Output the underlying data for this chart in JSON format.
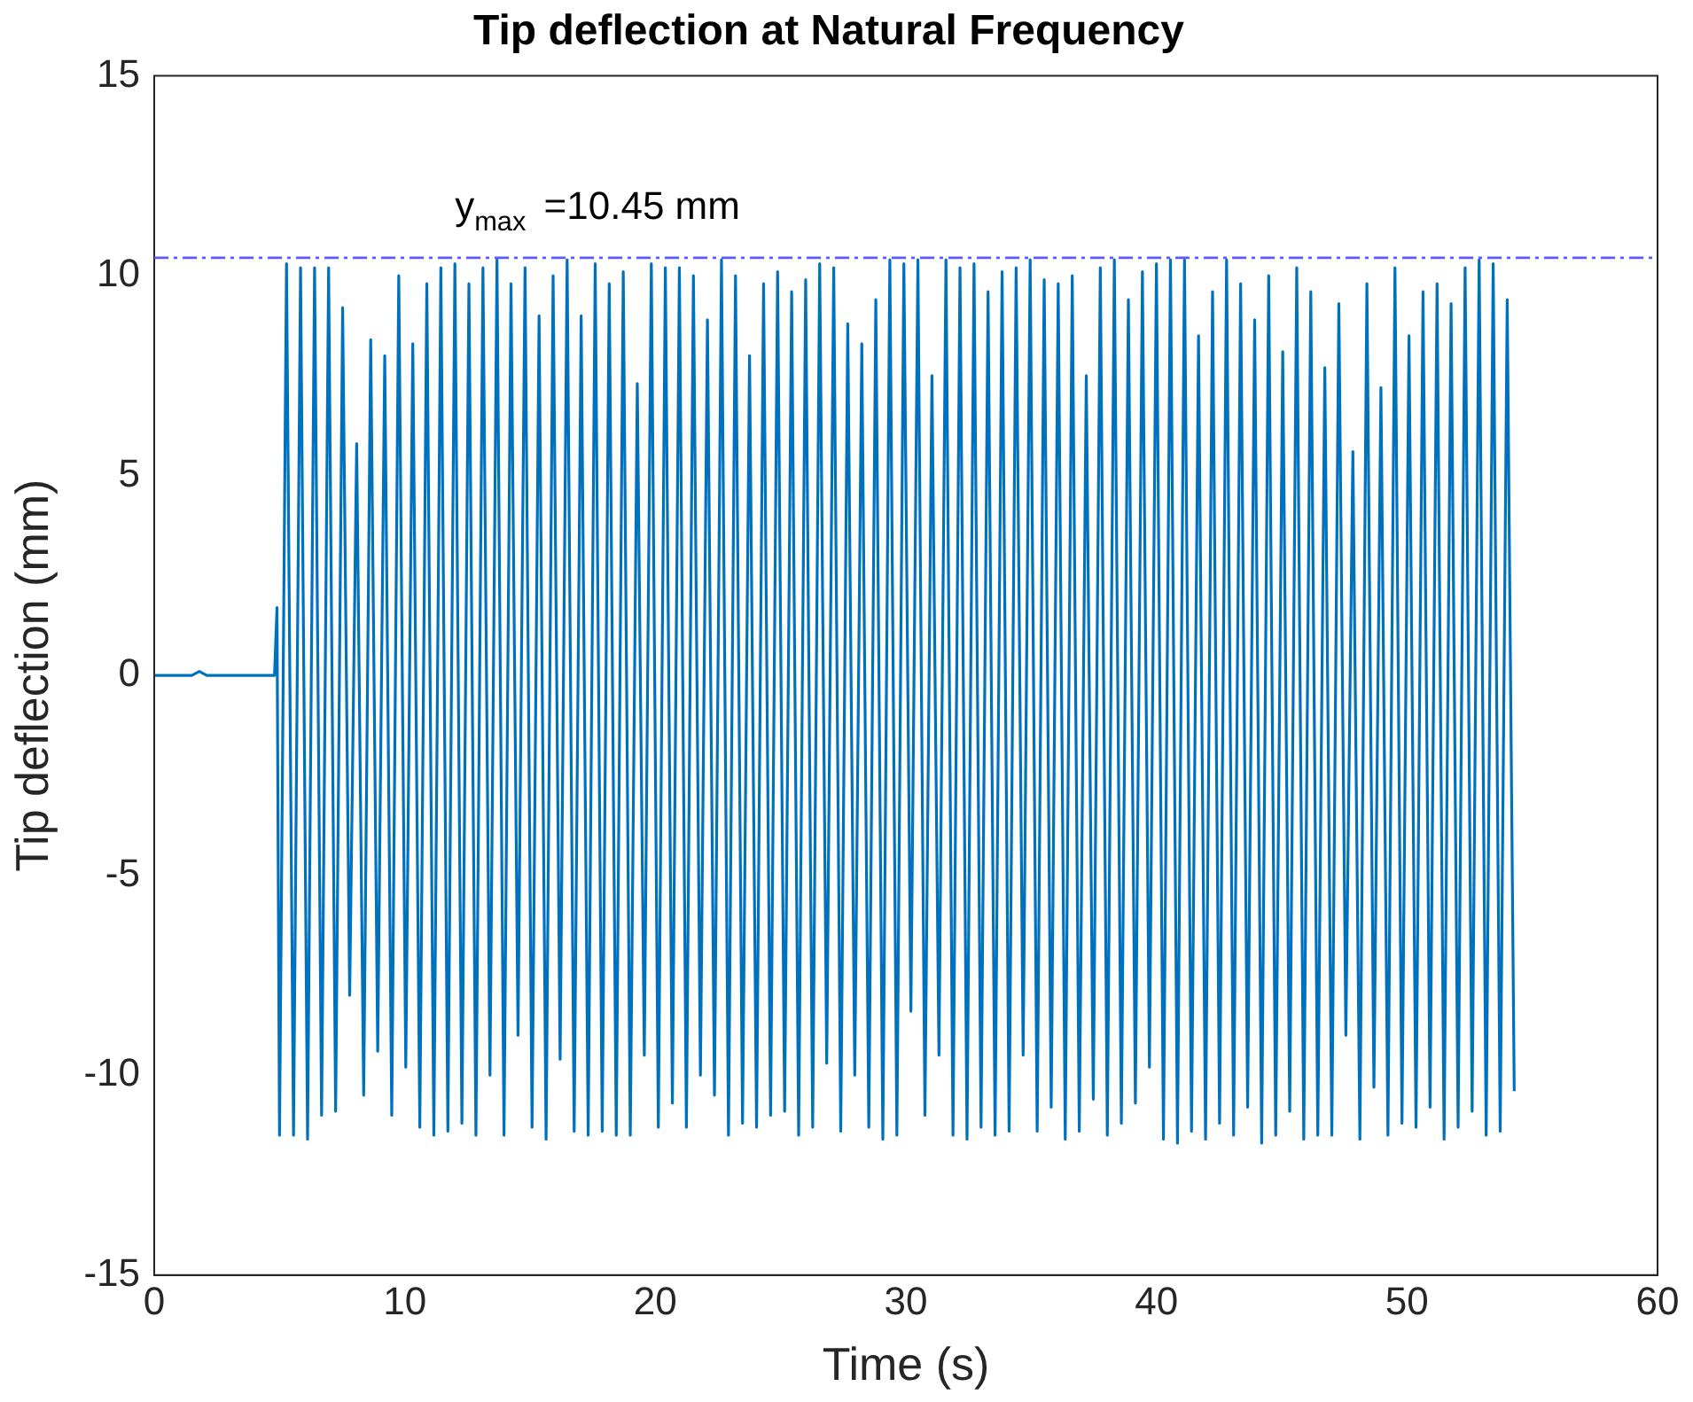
{
  "chart_data": {
    "type": "line",
    "title": "Tip deflection at Natural Frequency",
    "xlabel": "Time (s)",
    "ylabel": "Tip deflection (mm)",
    "xlim": [
      0,
      60
    ],
    "ylim": [
      -15,
      15
    ],
    "xticks": [
      0,
      10,
      20,
      30,
      40,
      50,
      60
    ],
    "yticks": [
      -15,
      -10,
      -5,
      0,
      5,
      10,
      15
    ],
    "grid": false,
    "legend": false,
    "marker": "none",
    "line_style": "solid",
    "ref_lines": [
      {
        "axis": "y",
        "value": 10.45,
        "label": "y$_{max}$ =10.45 mm",
        "color": "#5a5aff",
        "line_style": "dashed"
      }
    ],
    "series": [
      {
        "color": "#0072bd",
        "x": [
          0,
          1.5,
          1.8,
          2.1,
          4.8,
          4.9,
          5.0,
          5.28,
          5.56,
          5.84,
          6.12,
          6.4,
          6.68,
          6.96,
          7.24,
          7.52,
          7.8,
          8.08,
          8.36,
          8.64,
          8.92,
          9.2,
          9.48,
          9.76,
          10.04,
          10.32,
          10.6,
          10.88,
          11.16,
          11.44,
          11.72,
          12.0,
          12.28,
          12.56,
          12.84,
          13.12,
          13.4,
          13.68,
          13.96,
          14.24,
          14.52,
          14.8,
          15.08,
          15.36,
          15.64,
          15.92,
          16.2,
          16.48,
          16.76,
          17.04,
          17.32,
          17.6,
          17.88,
          18.16,
          18.44,
          18.72,
          19.0,
          19.28,
          19.56,
          19.84,
          20.12,
          20.4,
          20.68,
          20.96,
          21.24,
          21.52,
          21.8,
          22.08,
          22.36,
          22.64,
          22.92,
          23.2,
          23.48,
          23.76,
          24.04,
          24.32,
          24.6,
          24.88,
          25.16,
          25.44,
          25.72,
          26.0,
          26.28,
          26.56,
          26.84,
          27.12,
          27.4,
          27.68,
          27.96,
          28.24,
          28.52,
          28.8,
          29.08,
          29.36,
          29.64,
          29.92,
          30.2,
          30.48,
          30.76,
          31.04,
          31.32,
          31.6,
          31.88,
          32.16,
          32.44,
          32.72,
          33.0,
          33.28,
          33.56,
          33.84,
          34.12,
          34.4,
          34.68,
          34.96,
          35.24,
          35.52,
          35.8,
          36.08,
          36.36,
          36.64,
          36.92,
          37.2,
          37.48,
          37.76,
          38.04,
          38.32,
          38.6,
          38.88,
          39.16,
          39.44,
          39.72,
          40.0,
          40.28,
          40.56,
          40.84,
          41.12,
          41.4,
          41.68,
          41.96,
          42.24,
          42.52,
          42.8,
          43.08,
          43.36,
          43.64,
          43.92,
          44.2,
          44.48,
          44.76,
          45.04,
          45.32,
          45.6,
          45.88,
          46.16,
          46.44,
          46.72,
          47.0,
          47.28,
          47.56,
          47.84,
          48.12,
          48.4,
          48.68,
          48.96,
          49.24,
          49.52,
          49.8,
          50.08,
          50.36,
          50.64,
          50.92,
          51.2,
          51.48,
          51.76,
          52.04,
          52.32,
          52.6,
          52.88,
          53.16,
          53.44,
          53.72,
          54.0,
          54.28
        ],
        "values": [
          0,
          0,
          0.1,
          0,
          0,
          1.7,
          -11.5,
          10.3,
          -11.5,
          10.2,
          -11.6,
          10.2,
          -11.0,
          10.2,
          -10.9,
          9.2,
          -8,
          5.8,
          -10.5,
          8.4,
          -9.4,
          8.0,
          -11.0,
          10.0,
          -9.8,
          8.3,
          -11.3,
          9.8,
          -11.5,
          10.2,
          -11.4,
          10.3,
          -11.2,
          9.8,
          -11.5,
          10.2,
          -10.0,
          10.4,
          -11.5,
          9.8,
          -9.0,
          10.2,
          -11.3,
          9.0,
          -11.6,
          10.0,
          -9.6,
          10.4,
          -11.4,
          9.0,
          -11.5,
          10.3,
          -11.4,
          9.8,
          -11.5,
          10.1,
          -11.5,
          7.3,
          -9.5,
          10.3,
          -11.3,
          10.2,
          -10.7,
          10.2,
          -11.3,
          10.0,
          -10.0,
          8.9,
          -10.5,
          10.4,
          -11.5,
          10.0,
          -11.2,
          8.0,
          -11.3,
          9.8,
          -11.0,
          10.1,
          -10.9,
          9.6,
          -11.5,
          9.9,
          -11.3,
          10.3,
          -9.7,
          10.2,
          -11.4,
          8.8,
          -10.0,
          8.3,
          -11.3,
          9.4,
          -11.6,
          10.4,
          -11.5,
          10.3,
          -8.4,
          10.4,
          -11.0,
          7.5,
          -9.5,
          10.4,
          -11.5,
          10.2,
          -11.6,
          10.3,
          -11.3,
          9.6,
          -11.5,
          10.1,
          -11.4,
          10.2,
          -9.5,
          10.4,
          -11.4,
          9.9,
          -10.8,
          9.8,
          -11.6,
          10.0,
          -11.4,
          7.5,
          -10.6,
          10.2,
          -11.5,
          10.4,
          -11.2,
          9.4,
          -10.7,
          10.1,
          -9.8,
          10.3,
          -11.6,
          10.4,
          -11.7,
          10.4,
          -11.4,
          8.5,
          -11.6,
          9.6,
          -11.2,
          10.4,
          -11.5,
          9.8,
          -10.8,
          8.9,
          -11.7,
          10.0,
          -11.5,
          8.1,
          -10.9,
          10.2,
          -11.6,
          9.6,
          -11.5,
          7.7,
          -11.5,
          9.3,
          -9.0,
          5.6,
          -11.6,
          9.8,
          -10.3,
          7.2,
          -11.5,
          10.2,
          -11.2,
          8.5,
          -11.3,
          9.6,
          -10.8,
          9.8,
          -11.6,
          9.3,
          -11.3,
          10.2,
          -10.9,
          10.4,
          -11.5,
          10.3,
          -11.4,
          9.4,
          -10.4
        ]
      }
    ]
  }
}
